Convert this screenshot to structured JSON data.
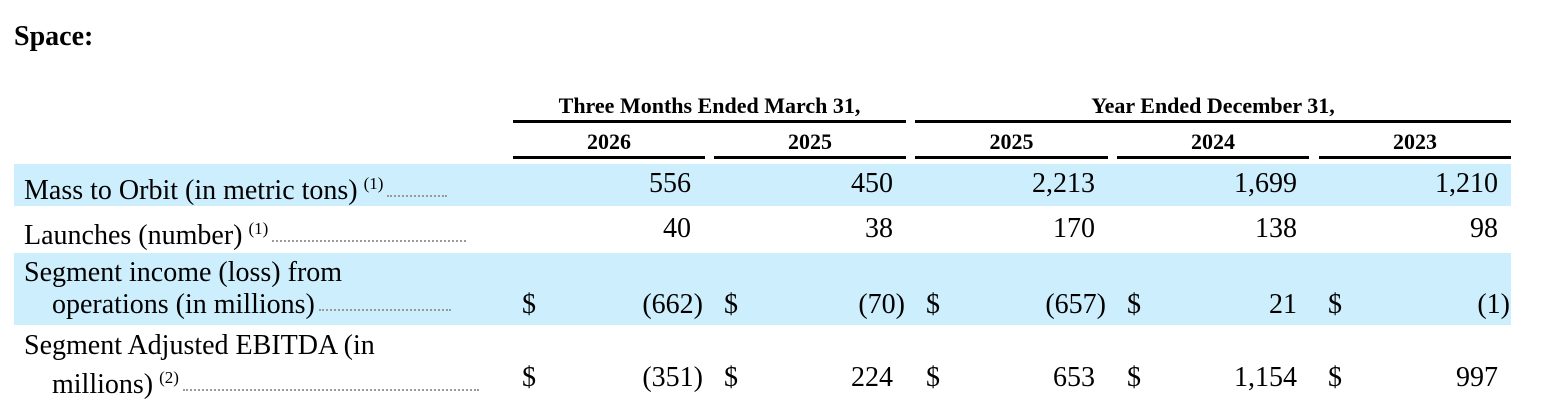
{
  "section_title": "Space:",
  "column_groups": [
    {
      "label": "Three Months Ended March 31,"
    },
    {
      "label": "Year Ended December 31,"
    }
  ],
  "years": [
    "2026",
    "2025",
    "2025",
    "2024",
    "2023"
  ],
  "rows": [
    {
      "label_line1": "Mass to Orbit (in metric tons)",
      "label_line2": "",
      "footnote": "(1)",
      "has_dollar": false,
      "dollar": "",
      "values": [
        "556",
        "450",
        "2,213",
        "1,699",
        "1,210"
      ]
    },
    {
      "label_line1": "Launches (number)",
      "label_line2": "",
      "footnote": "(1)",
      "has_dollar": false,
      "dollar": "",
      "values": [
        "40",
        "38",
        "170",
        "138",
        "98"
      ]
    },
    {
      "label_line1": "Segment income (loss) from",
      "label_line2": "operations (in millions)",
      "footnote": "",
      "has_dollar": true,
      "dollar": "$",
      "values": [
        "(662)",
        "(70)",
        "(657)",
        "21",
        "(1)"
      ]
    },
    {
      "label_line1": "Segment Adjusted EBITDA (in",
      "label_line2": "millions)",
      "footnote": "(2)",
      "has_dollar": true,
      "dollar": "$",
      "values": [
        "(351)",
        "224",
        "653",
        "1,154",
        "997"
      ]
    }
  ]
}
